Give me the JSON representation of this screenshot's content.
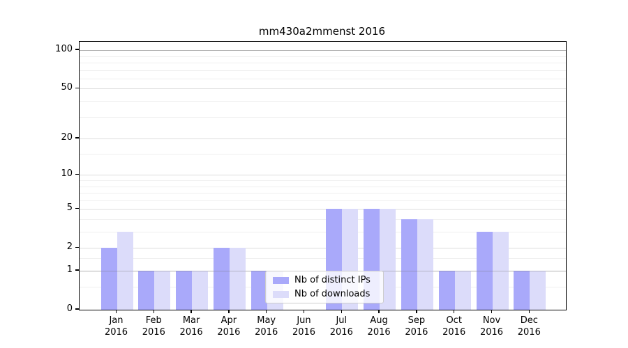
{
  "title": "mm430a2mmenst 2016",
  "chart_data": {
    "type": "bar",
    "categories": [
      "Jan 2016",
      "Feb 2016",
      "Mar 2016",
      "Apr 2016",
      "May 2016",
      "Jun 2016",
      "Jul 2016",
      "Aug 2016",
      "Sep 2016",
      "Oct 2016",
      "Nov 2016",
      "Dec 2016"
    ],
    "series": [
      {
        "name": "Nb of distinct IPs",
        "color": "#a9a9fa",
        "values": [
          2,
          1,
          1,
          2,
          1,
          0,
          5,
          5,
          4,
          1,
          3,
          1
        ]
      },
      {
        "name": "Nb of downloads",
        "color": "#dcdcfa",
        "values": [
          3,
          1,
          1,
          2,
          1,
          0,
          5,
          5,
          4,
          1,
          3,
          1
        ]
      }
    ],
    "title": "mm430a2mmenst 2016",
    "xlabel": "",
    "ylabel": "",
    "yscale": "log1p",
    "ylim": [
      0,
      118
    ],
    "y_major_ticks": [
      0,
      1,
      2,
      5,
      10,
      20,
      50,
      100
    ],
    "y_minor_ticks": [
      0.5,
      1.5,
      3,
      4,
      6,
      7,
      8,
      9,
      15,
      30,
      40,
      60,
      70,
      80,
      90
    ],
    "grid": true,
    "legend_position": "lower center"
  },
  "colors": {
    "grid_major": "#dcdcdc",
    "grid_minor": "#efefef",
    "grid_top": "#b3b3b3",
    "spine": "#000000",
    "background": "#ffffff"
  }
}
